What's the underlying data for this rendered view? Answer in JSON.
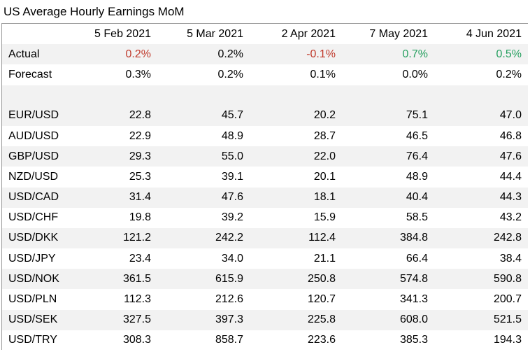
{
  "title": "US Average Hourly Earnings MoM",
  "columns": [
    "5 Feb 2021",
    "5 Mar 2021",
    "2 Apr 2021",
    "7 May 2021",
    "4 Jun 2021"
  ],
  "actual": {
    "label": "Actual",
    "values": [
      "0.2%",
      "0.2%",
      "-0.1%",
      "0.7%",
      "0.5%"
    ],
    "colors": [
      "#c0392b",
      "#000000",
      "#c0392b",
      "#27a060",
      "#27a060"
    ]
  },
  "forecast": {
    "label": "Forecast",
    "values": [
      "0.3%",
      "0.2%",
      "0.1%",
      "0.0%",
      "0.2%"
    ]
  },
  "pairs": [
    {
      "pair": "EUR/USD",
      "values": [
        "22.8",
        "45.7",
        "20.2",
        "75.1",
        "47.0"
      ]
    },
    {
      "pair": "AUD/USD",
      "values": [
        "22.9",
        "48.9",
        "28.7",
        "46.5",
        "46.8"
      ]
    },
    {
      "pair": "GBP/USD",
      "values": [
        "29.3",
        "55.0",
        "22.0",
        "76.4",
        "47.6"
      ]
    },
    {
      "pair": "NZD/USD",
      "values": [
        "25.3",
        "39.1",
        "20.1",
        "48.9",
        "44.4"
      ]
    },
    {
      "pair": "USD/CAD",
      "values": [
        "31.4",
        "47.6",
        "18.1",
        "40.4",
        "44.3"
      ]
    },
    {
      "pair": "USD/CHF",
      "values": [
        "19.8",
        "39.2",
        "15.9",
        "58.5",
        "43.2"
      ]
    },
    {
      "pair": "USD/DKK",
      "values": [
        "121.2",
        "242.2",
        "112.4",
        "384.8",
        "242.8"
      ]
    },
    {
      "pair": "USD/JPY",
      "values": [
        "23.4",
        "34.0",
        "21.1",
        "66.4",
        "38.4"
      ]
    },
    {
      "pair": "USD/NOK",
      "values": [
        "361.5",
        "615.9",
        "250.8",
        "574.8",
        "590.8"
      ]
    },
    {
      "pair": "USD/PLN",
      "values": [
        "112.3",
        "212.6",
        "120.7",
        "341.3",
        "200.7"
      ]
    },
    {
      "pair": "USD/SEK",
      "values": [
        "327.5",
        "397.3",
        "225.8",
        "608.0",
        "521.5"
      ]
    },
    {
      "pair": "USD/TRY",
      "values": [
        "308.3",
        "858.7",
        "223.6",
        "385.3",
        "194.3"
      ]
    }
  ]
}
